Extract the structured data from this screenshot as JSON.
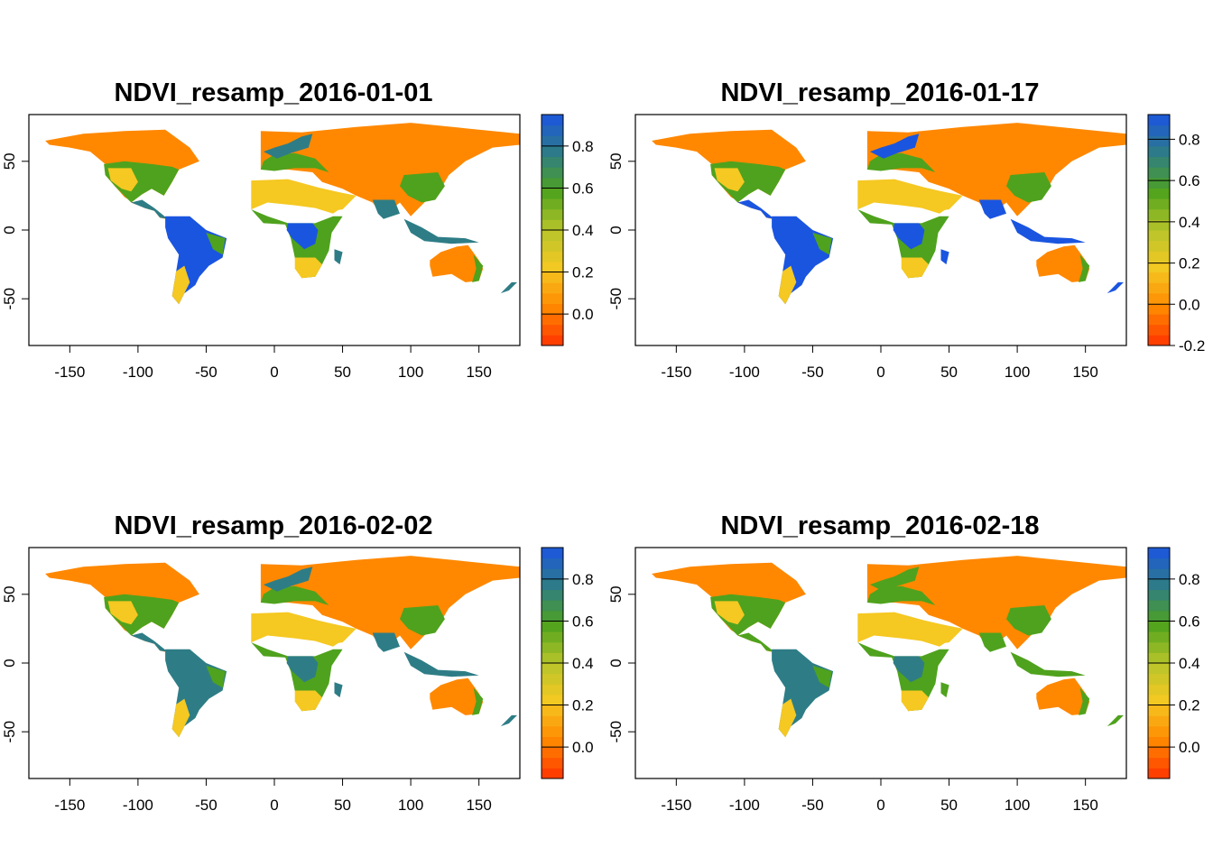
{
  "figure": {
    "panels": [
      {
        "title": "NDVI_resamp_2016-01-01",
        "legend_ticks": [
          "0.0",
          "0.2",
          "0.4",
          "0.6",
          "0.8"
        ],
        "legend_range": [
          -0.15,
          0.95
        ],
        "variant": 0
      },
      {
        "title": "NDVI_resamp_2016-01-17",
        "legend_ticks": [
          "-0.2",
          "0.0",
          "0.2",
          "0.4",
          "0.6",
          "0.8"
        ],
        "legend_range": [
          -0.2,
          0.92
        ],
        "variant": 1
      },
      {
        "title": "NDVI_resamp_2016-02-02",
        "legend_ticks": [
          "0.0",
          "0.2",
          "0.4",
          "0.6",
          "0.8"
        ],
        "legend_range": [
          -0.15,
          0.95
        ],
        "variant": 2
      },
      {
        "title": "NDVI_resamp_2016-02-18",
        "legend_ticks": [
          "0.0",
          "0.2",
          "0.4",
          "0.6",
          "0.8"
        ],
        "legend_range": [
          -0.15,
          0.95
        ],
        "variant": 3
      }
    ],
    "x_ticks": [
      "-150",
      "-100",
      "-50",
      "0",
      "50",
      "100",
      "150"
    ],
    "y_ticks": [
      "50",
      "0",
      "-50"
    ],
    "x_range": [
      -180,
      180
    ],
    "y_range": [
      -84,
      84
    ],
    "colors": {
      "red": "#ff3300",
      "orange": "#ff8800",
      "yellow": "#f5c822",
      "olive": "#b8c52a",
      "green": "#4fa21d",
      "teal": "#2e7d86",
      "blue": "#1a55e0"
    }
  }
}
